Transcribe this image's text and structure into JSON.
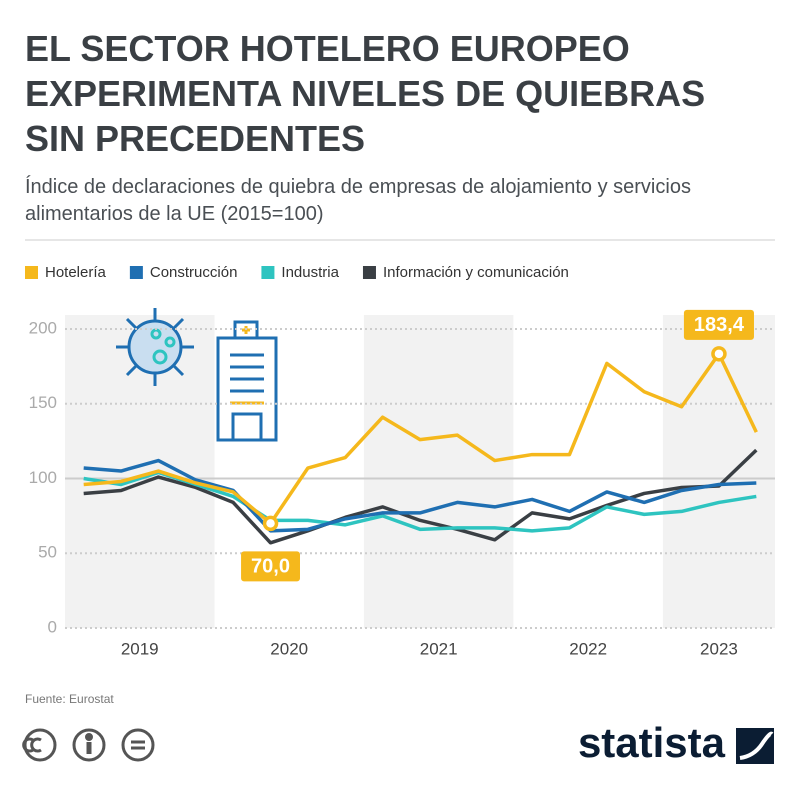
{
  "chart_data": {
    "type": "line",
    "title": "EL SECTOR HOTELERO EUROPEO EXPERIMENTA NIVELES DE QUIEBRAS SIN PRECEDENTES",
    "subtitle": "Índice de declaraciones de quiebra de empresas de alojamiento y servicios alimentarios de la UE (2015=100)",
    "categories": [
      "2019",
      null,
      null,
      null,
      "2020",
      null,
      null,
      null,
      "2021",
      null,
      null,
      null,
      "2022",
      null,
      null,
      null,
      "2023",
      null,
      null
    ],
    "series": [
      {
        "name": "Hotelería",
        "color": "#f5b81c",
        "values": [
          96,
          98,
          105,
          97,
          91,
          70,
          107,
          114,
          141,
          126,
          129,
          112,
          116,
          116,
          177,
          158,
          148,
          183.4,
          131
        ],
        "value_labels": [
          null,
          null,
          null,
          null,
          null,
          "70,0",
          null,
          null,
          null,
          null,
          null,
          null,
          null,
          null,
          null,
          null,
          null,
          "183,4",
          null
        ]
      },
      {
        "name": "Construcción",
        "color": "#1f6fb2",
        "values": [
          107,
          105,
          112,
          99,
          92,
          65,
          66,
          73,
          77,
          77,
          84,
          81,
          86,
          78,
          91,
          84,
          92,
          96,
          97
        ]
      },
      {
        "name": "Industria",
        "color": "#2ec4c0",
        "values": [
          100,
          96,
          104,
          96,
          88,
          72,
          72,
          69,
          75,
          66,
          67,
          67,
          65,
          67,
          81,
          76,
          78,
          84,
          88
        ]
      },
      {
        "name": "Información y comunicación",
        "color": "#3a3f44",
        "values": [
          90,
          92,
          101,
          94,
          84,
          57,
          65,
          74,
          81,
          72,
          66,
          59,
          77,
          73,
          82,
          90,
          94,
          95,
          119
        ]
      }
    ],
    "ylim": [
      0,
      200
    ],
    "yticks": [
      0,
      50,
      100,
      150,
      200
    ],
    "grid": true,
    "reference_line": 100,
    "legend": "top",
    "source": "Fuente: Eurostat"
  },
  "logo": "statista"
}
